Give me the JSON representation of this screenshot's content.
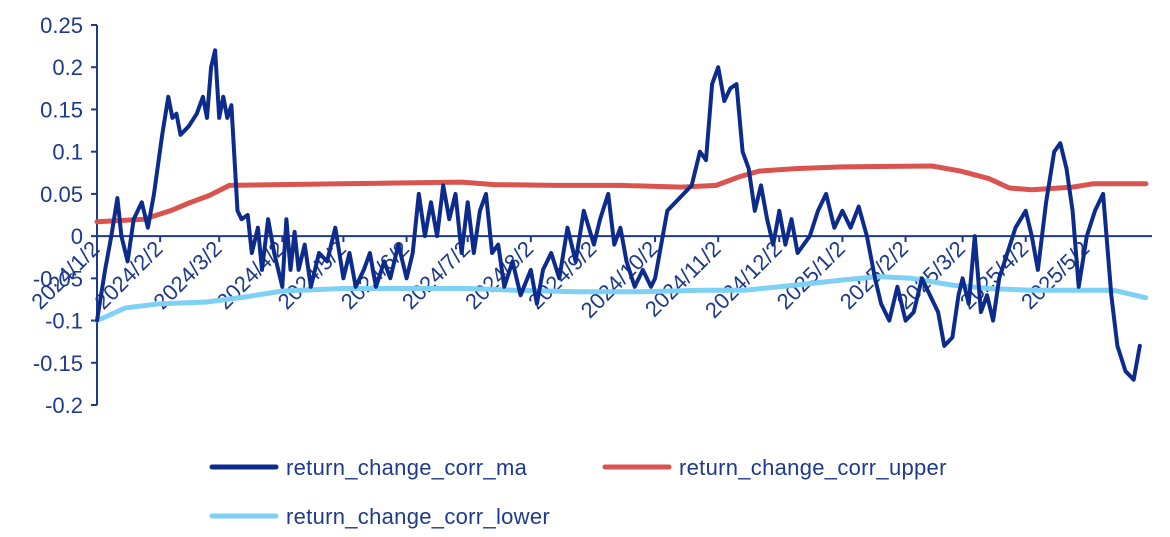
{
  "chart_data": {
    "type": "line",
    "title": "",
    "xlabel": "",
    "ylabel": "",
    "ylim": [
      -0.2,
      0.25
    ],
    "yticks": [
      -0.2,
      -0.15,
      -0.1,
      -0.05,
      0,
      0.05,
      0.1,
      0.15,
      0.2,
      0.25
    ],
    "ytick_labels": [
      "-0.2",
      "-0.15",
      "-0.1",
      "-0.05",
      "0",
      "0.05",
      "0.1",
      "0.15",
      "0.2",
      "0.25"
    ],
    "xlim": [
      "2024-01-02",
      "2025-06-03"
    ],
    "xticks": [
      "2024-01-02",
      "2024-02-02",
      "2024-03-02",
      "2024-04-02",
      "2024-05-02",
      "2024-06-02",
      "2024-07-02",
      "2024-08-02",
      "2024-09-02",
      "2024-10-02",
      "2024-11-02",
      "2024-12-02",
      "2025-01-02",
      "2025-02-02",
      "2025-03-02",
      "2025-04-02",
      "2025-05-02"
    ],
    "xtick_labels": [
      "2024/1/2",
      "2024/2/2",
      "2024/3/2",
      "2024/4/2",
      "2024/5/2",
      "2024/6/2",
      "2024/7/2",
      "2024/8/2",
      "2024/9/2",
      "2024/10/2",
      "2024/11/2",
      "2024/12/2",
      "2025/1/2",
      "2025/2/2",
      "2025/3/2",
      "2025/4/2",
      "2025/5/2"
    ],
    "grid": false,
    "legend_position": "bottom",
    "series": [
      {
        "name": "return_change_corr_ma",
        "color": "#0d2b8c",
        "points": [
          [
            "2024-01-02",
            -0.1
          ],
          [
            "2024-01-06",
            -0.04
          ],
          [
            "2024-01-09",
            0.0
          ],
          [
            "2024-01-12",
            0.045
          ],
          [
            "2024-01-14",
            0.0
          ],
          [
            "2024-01-17",
            -0.03
          ],
          [
            "2024-01-20",
            0.02
          ],
          [
            "2024-01-24",
            0.04
          ],
          [
            "2024-01-27",
            0.01
          ],
          [
            "2024-01-30",
            0.05
          ],
          [
            "2024-02-03",
            0.12
          ],
          [
            "2024-02-06",
            0.165
          ],
          [
            "2024-02-08",
            0.14
          ],
          [
            "2024-02-10",
            0.145
          ],
          [
            "2024-02-12",
            0.12
          ],
          [
            "2024-02-16",
            0.13
          ],
          [
            "2024-02-20",
            0.145
          ],
          [
            "2024-02-23",
            0.165
          ],
          [
            "2024-02-25",
            0.14
          ],
          [
            "2024-02-27",
            0.2
          ],
          [
            "2024-02-29",
            0.22
          ],
          [
            "2024-03-02",
            0.14
          ],
          [
            "2024-03-04",
            0.165
          ],
          [
            "2024-03-06",
            0.14
          ],
          [
            "2024-03-08",
            0.155
          ],
          [
            "2024-03-11",
            0.03
          ],
          [
            "2024-03-13",
            0.02
          ],
          [
            "2024-03-16",
            0.025
          ],
          [
            "2024-03-18",
            -0.02
          ],
          [
            "2024-03-21",
            0.01
          ],
          [
            "2024-03-23",
            -0.04
          ],
          [
            "2024-03-26",
            0.02
          ],
          [
            "2024-03-29",
            -0.02
          ],
          [
            "2024-04-02",
            -0.06
          ],
          [
            "2024-04-04",
            0.02
          ],
          [
            "2024-04-06",
            -0.04
          ],
          [
            "2024-04-08",
            0.005
          ],
          [
            "2024-04-10",
            -0.04
          ],
          [
            "2024-04-13",
            -0.01
          ],
          [
            "2024-04-16",
            -0.06
          ],
          [
            "2024-04-20",
            -0.02
          ],
          [
            "2024-04-24",
            -0.03
          ],
          [
            "2024-04-28",
            0.01
          ],
          [
            "2024-05-02",
            -0.05
          ],
          [
            "2024-05-05",
            -0.02
          ],
          [
            "2024-05-08",
            -0.06
          ],
          [
            "2024-05-12",
            -0.04
          ],
          [
            "2024-05-15",
            -0.02
          ],
          [
            "2024-05-18",
            -0.06
          ],
          [
            "2024-05-22",
            -0.03
          ],
          [
            "2024-05-25",
            -0.05
          ],
          [
            "2024-05-29",
            -0.01
          ],
          [
            "2024-06-02",
            -0.05
          ],
          [
            "2024-06-05",
            -0.02
          ],
          [
            "2024-06-08",
            0.05
          ],
          [
            "2024-06-11",
            0.0
          ],
          [
            "2024-06-14",
            0.04
          ],
          [
            "2024-06-17",
            0.0
          ],
          [
            "2024-06-20",
            0.06
          ],
          [
            "2024-06-23",
            0.02
          ],
          [
            "2024-06-26",
            0.05
          ],
          [
            "2024-06-29",
            -0.02
          ],
          [
            "2024-07-02",
            0.04
          ],
          [
            "2024-07-05",
            -0.02
          ],
          [
            "2024-07-08",
            0.03
          ],
          [
            "2024-07-11",
            0.05
          ],
          [
            "2024-07-14",
            -0.02
          ],
          [
            "2024-07-17",
            -0.01
          ],
          [
            "2024-07-20",
            -0.06
          ],
          [
            "2024-07-24",
            -0.03
          ],
          [
            "2024-07-28",
            -0.07
          ],
          [
            "2024-08-02",
            -0.04
          ],
          [
            "2024-08-05",
            -0.08
          ],
          [
            "2024-08-08",
            -0.04
          ],
          [
            "2024-08-12",
            -0.02
          ],
          [
            "2024-08-16",
            -0.05
          ],
          [
            "2024-08-20",
            0.01
          ],
          [
            "2024-08-24",
            -0.03
          ],
          [
            "2024-08-28",
            0.03
          ],
          [
            "2024-09-02",
            -0.01
          ],
          [
            "2024-09-05",
            0.02
          ],
          [
            "2024-09-09",
            0.05
          ],
          [
            "2024-09-12",
            -0.01
          ],
          [
            "2024-09-15",
            0.01
          ],
          [
            "2024-09-18",
            -0.03
          ],
          [
            "2024-09-22",
            -0.06
          ],
          [
            "2024-09-26",
            -0.04
          ],
          [
            "2024-09-30",
            -0.06
          ],
          [
            "2024-10-02",
            -0.05
          ],
          [
            "2024-10-08",
            0.03
          ],
          [
            "2024-10-14",
            0.045
          ],
          [
            "2024-10-20",
            0.06
          ],
          [
            "2024-10-24",
            0.1
          ],
          [
            "2024-10-27",
            0.09
          ],
          [
            "2024-10-30",
            0.18
          ],
          [
            "2024-11-02",
            0.2
          ],
          [
            "2024-11-05",
            0.16
          ],
          [
            "2024-11-08",
            0.175
          ],
          [
            "2024-11-11",
            0.18
          ],
          [
            "2024-11-14",
            0.1
          ],
          [
            "2024-11-17",
            0.08
          ],
          [
            "2024-11-20",
            0.03
          ],
          [
            "2024-11-23",
            0.06
          ],
          [
            "2024-11-26",
            0.02
          ],
          [
            "2024-11-29",
            -0.01
          ],
          [
            "2024-12-02",
            0.03
          ],
          [
            "2024-12-05",
            -0.01
          ],
          [
            "2024-12-08",
            0.02
          ],
          [
            "2024-12-11",
            -0.02
          ],
          [
            "2024-12-14",
            -0.01
          ],
          [
            "2024-12-17",
            0.0
          ],
          [
            "2024-12-21",
            0.03
          ],
          [
            "2024-12-25",
            0.05
          ],
          [
            "2024-12-29",
            0.01
          ],
          [
            "2025-01-02",
            0.03
          ],
          [
            "2025-01-06",
            0.01
          ],
          [
            "2025-01-10",
            0.035
          ],
          [
            "2025-01-14",
            0.0
          ],
          [
            "2025-01-18",
            -0.05
          ],
          [
            "2025-01-21",
            -0.08
          ],
          [
            "2025-01-25",
            -0.1
          ],
          [
            "2025-01-29",
            -0.06
          ],
          [
            "2025-02-02",
            -0.1
          ],
          [
            "2025-02-06",
            -0.09
          ],
          [
            "2025-02-10",
            -0.05
          ],
          [
            "2025-02-14",
            -0.07
          ],
          [
            "2025-02-18",
            -0.09
          ],
          [
            "2025-02-21",
            -0.13
          ],
          [
            "2025-02-25",
            -0.12
          ],
          [
            "2025-02-28",
            -0.07
          ],
          [
            "2025-03-02",
            -0.05
          ],
          [
            "2025-03-05",
            -0.08
          ],
          [
            "2025-03-08",
            0.0
          ],
          [
            "2025-03-11",
            -0.09
          ],
          [
            "2025-03-14",
            -0.07
          ],
          [
            "2025-03-17",
            -0.1
          ],
          [
            "2025-03-20",
            -0.05
          ],
          [
            "2025-03-24",
            -0.02
          ],
          [
            "2025-03-28",
            0.01
          ],
          [
            "2025-04-02",
            0.03
          ],
          [
            "2025-04-05",
            0.0
          ],
          [
            "2025-04-08",
            -0.04
          ],
          [
            "2025-04-12",
            0.04
          ],
          [
            "2025-04-16",
            0.1
          ],
          [
            "2025-04-19",
            0.11
          ],
          [
            "2025-04-22",
            0.08
          ],
          [
            "2025-04-25",
            0.03
          ],
          [
            "2025-04-28",
            -0.06
          ],
          [
            "2025-05-02",
            0.0
          ],
          [
            "2025-05-06",
            0.03
          ],
          [
            "2025-05-10",
            0.05
          ],
          [
            "2025-05-14",
            -0.07
          ],
          [
            "2025-05-17",
            -0.13
          ],
          [
            "2025-05-21",
            -0.16
          ],
          [
            "2025-05-25",
            -0.17
          ],
          [
            "2025-05-28",
            -0.13
          ]
        ]
      },
      {
        "name": "return_change_corr_upper",
        "color": "#d9534f",
        "points": [
          [
            "2024-01-02",
            0.017
          ],
          [
            "2024-01-25",
            0.02
          ],
          [
            "2024-02-07",
            0.03
          ],
          [
            "2024-02-17",
            0.04
          ],
          [
            "2024-02-26",
            0.048
          ],
          [
            "2024-03-07",
            0.06
          ],
          [
            "2024-04-01",
            0.061
          ],
          [
            "2024-05-01",
            0.062
          ],
          [
            "2024-06-01",
            0.063
          ],
          [
            "2024-06-29",
            0.064
          ],
          [
            "2024-07-15",
            0.061
          ],
          [
            "2024-08-15",
            0.06
          ],
          [
            "2024-09-15",
            0.06
          ],
          [
            "2024-10-15",
            0.058
          ],
          [
            "2024-11-01",
            0.06
          ],
          [
            "2024-11-12",
            0.07
          ],
          [
            "2024-11-22",
            0.077
          ],
          [
            "2024-12-10",
            0.08
          ],
          [
            "2025-01-02",
            0.082
          ],
          [
            "2025-02-15",
            0.083
          ],
          [
            "2025-03-01",
            0.077
          ],
          [
            "2025-03-15",
            0.068
          ],
          [
            "2025-03-25",
            0.057
          ],
          [
            "2025-04-05",
            0.055
          ],
          [
            "2025-04-25",
            0.058
          ],
          [
            "2025-05-05",
            0.062
          ],
          [
            "2025-05-31",
            0.062
          ]
        ]
      },
      {
        "name": "return_change_corr_lower",
        "color": "#7fd0f5",
        "points": [
          [
            "2024-01-02",
            -0.1
          ],
          [
            "2024-01-16",
            -0.085
          ],
          [
            "2024-02-02",
            -0.08
          ],
          [
            "2024-02-25",
            -0.078
          ],
          [
            "2024-03-15",
            -0.072
          ],
          [
            "2024-04-02",
            -0.065
          ],
          [
            "2024-05-02",
            -0.062
          ],
          [
            "2024-06-02",
            -0.062
          ],
          [
            "2024-07-02",
            -0.062
          ],
          [
            "2024-07-25",
            -0.064
          ],
          [
            "2024-08-25",
            -0.066
          ],
          [
            "2024-09-25",
            -0.066
          ],
          [
            "2024-10-25",
            -0.064
          ],
          [
            "2024-11-15",
            -0.064
          ],
          [
            "2024-12-10",
            -0.058
          ],
          [
            "2025-01-02",
            -0.052
          ],
          [
            "2025-01-20",
            -0.048
          ],
          [
            "2025-02-05",
            -0.05
          ],
          [
            "2025-02-25",
            -0.058
          ],
          [
            "2025-03-15",
            -0.062
          ],
          [
            "2025-04-05",
            -0.064
          ],
          [
            "2025-04-25",
            -0.064
          ],
          [
            "2025-05-15",
            -0.064
          ],
          [
            "2025-05-31",
            -0.073
          ]
        ]
      }
    ]
  }
}
